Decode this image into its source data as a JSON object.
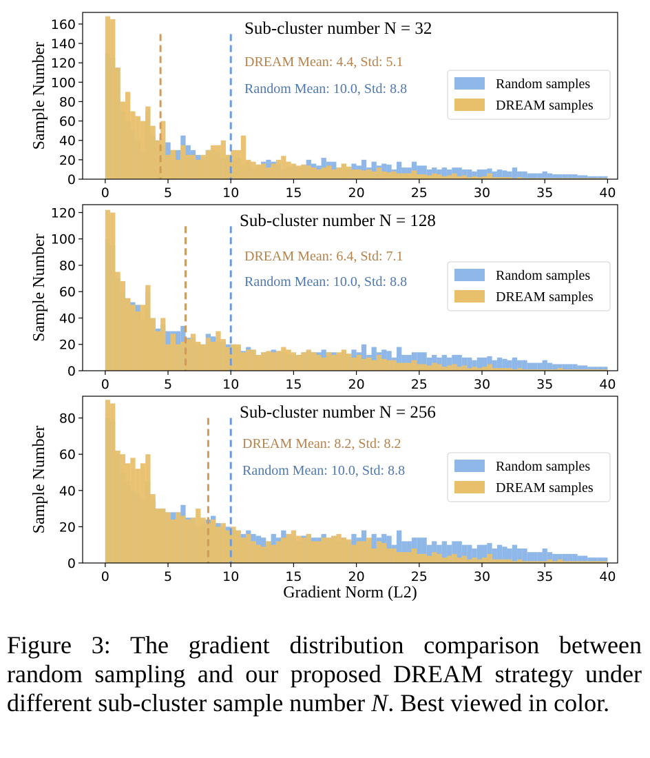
{
  "colors": {
    "random": "#8fb8e8",
    "dream": "#e8c06c",
    "random_line": "#6a9be0",
    "dream_line": "#cf9a5a",
    "random_text": "#4f78b3",
    "dream_text": "#b5824a"
  },
  "caption": {
    "label": "Figure 3:",
    "text_before": "The gradient distribution comparison between random sampling and our proposed DREAM strategy under different sub-cluster sample number",
    "var": "N",
    "text_after": ". Best viewed in color."
  },
  "chart_data": [
    {
      "type": "bar",
      "title": "Sub-cluster number N = 32",
      "xlabel": "",
      "ylabel": "Sample Number",
      "xlim": [
        -1.8,
        40.8
      ],
      "ylim": [
        0,
        172
      ],
      "xticks": [
        0,
        5,
        10,
        15,
        20,
        25,
        30,
        35,
        40
      ],
      "yticks": [
        0,
        20,
        40,
        60,
        80,
        100,
        120,
        140,
        160
      ],
      "bin_width": 0.4,
      "legend": {
        "position": "center-right",
        "entries": [
          "Random samples",
          "DREAM samples"
        ]
      },
      "annotations": {
        "dream": "DREAM Mean: 4.4, Std: 5.1",
        "random": "Random Mean: 10.0, Std: 8.8"
      },
      "dream_mean_line": 4.4,
      "random_mean_line": 10.0,
      "series": [
        {
          "name": "Random samples",
          "values": [
            130,
            125,
            115,
            70,
            60,
            50,
            40,
            28,
            70,
            45,
            40,
            35,
            38,
            30,
            30,
            45,
            35,
            30,
            25,
            22,
            30,
            30,
            28,
            22,
            25,
            20,
            22,
            15,
            18,
            12,
            15,
            18,
            20,
            18,
            16,
            10,
            12,
            14,
            12,
            15,
            20,
            16,
            14,
            22,
            18,
            18,
            12,
            16,
            10,
            16,
            14,
            20,
            12,
            18,
            14,
            16,
            15,
            10,
            18,
            12,
            12,
            18,
            14,
            14,
            10,
            12,
            10,
            12,
            10,
            12,
            12,
            10,
            10,
            8,
            10,
            10,
            11,
            8,
            10,
            9,
            8,
            12,
            8,
            8,
            6,
            6,
            6,
            8,
            6,
            5,
            5,
            5,
            5,
            5,
            4,
            4,
            3,
            3,
            3,
            3
          ]
        },
        {
          "name": "DREAM samples",
          "values": [
            168,
            165,
            115,
            80,
            90,
            70,
            65,
            60,
            75,
            55,
            40,
            60,
            25,
            30,
            20,
            35,
            25,
            25,
            20,
            25,
            30,
            35,
            35,
            40,
            25,
            30,
            30,
            45,
            20,
            18,
            15,
            16,
            12,
            16,
            20,
            24,
            18,
            16,
            14,
            15,
            14,
            12,
            10,
            12,
            14,
            10,
            12,
            16,
            13,
            10,
            10,
            9,
            10,
            8,
            12,
            8,
            7,
            8,
            6,
            6,
            6,
            9,
            5,
            5,
            4,
            6,
            5,
            3,
            4,
            6,
            3,
            4,
            2,
            3,
            2,
            3,
            6,
            2,
            2,
            2,
            2,
            1,
            2,
            1,
            1,
            1,
            1,
            1,
            1,
            1,
            1,
            1,
            1,
            1,
            1,
            1,
            1,
            1,
            1,
            1
          ]
        }
      ]
    },
    {
      "type": "bar",
      "title": "Sub-cluster number N = 128",
      "xlabel": "",
      "ylabel": "Sample Number",
      "xlim": [
        -1.8,
        40.8
      ],
      "ylim": [
        0,
        126
      ],
      "xticks": [
        0,
        5,
        10,
        15,
        20,
        25,
        30,
        35,
        40
      ],
      "yticks": [
        0,
        20,
        40,
        60,
        80,
        100,
        120
      ],
      "bin_width": 0.4,
      "legend": {
        "position": "center-right",
        "entries": [
          "Random samples",
          "DREAM samples"
        ]
      },
      "annotations": {
        "dream": "DREAM Mean: 6.4, Std: 7.1",
        "random": "Random Mean: 10.0, Std: 8.8"
      },
      "dream_mean_line": 6.4,
      "random_mean_line": 10.0,
      "series": [
        {
          "name": "Random samples",
          "values": [
            100,
            95,
            70,
            60,
            55,
            52,
            50,
            38,
            60,
            40,
            32,
            35,
            30,
            30,
            30,
            34,
            25,
            25,
            20,
            20,
            28,
            26,
            22,
            22,
            20,
            20,
            18,
            15,
            18,
            16,
            12,
            14,
            14,
            16,
            15,
            14,
            12,
            12,
            12,
            14,
            15,
            14,
            14,
            16,
            14,
            14,
            12,
            14,
            12,
            16,
            14,
            20,
            12,
            18,
            14,
            16,
            15,
            10,
            18,
            12,
            12,
            14,
            14,
            14,
            10,
            12,
            10,
            12,
            10,
            12,
            12,
            10,
            10,
            8,
            10,
            10,
            11,
            8,
            10,
            9,
            8,
            10,
            8,
            8,
            6,
            6,
            6,
            8,
            6,
            5,
            5,
            5,
            5,
            5,
            4,
            4,
            3,
            3,
            3,
            3
          ]
        },
        {
          "name": "DREAM samples",
          "values": [
            122,
            120,
            75,
            68,
            55,
            50,
            45,
            50,
            65,
            40,
            30,
            40,
            20,
            28,
            20,
            22,
            24,
            28,
            22,
            20,
            25,
            22,
            30,
            24,
            18,
            20,
            20,
            14,
            16,
            16,
            12,
            14,
            15,
            14,
            15,
            18,
            16,
            14,
            12,
            14,
            16,
            14,
            12,
            10,
            14,
            12,
            14,
            16,
            13,
            10,
            12,
            9,
            10,
            8,
            12,
            9,
            8,
            8,
            6,
            6,
            6,
            8,
            5,
            5,
            4,
            6,
            5,
            3,
            4,
            5,
            3,
            4,
            2,
            3,
            2,
            3,
            5,
            2,
            2,
            2,
            2,
            1,
            2,
            1,
            1,
            1,
            1,
            1,
            1,
            1,
            2,
            1,
            1,
            1,
            1,
            1,
            1,
            1,
            1,
            1
          ]
        }
      ]
    },
    {
      "type": "bar",
      "title": "Sub-cluster number N = 256",
      "xlabel": "Gradient Norm (L2)",
      "ylabel": "Sample Number",
      "xlim": [
        -1.8,
        40.8
      ],
      "ylim": [
        0,
        92
      ],
      "xticks": [
        0,
        5,
        10,
        15,
        20,
        25,
        30,
        35,
        40
      ],
      "yticks": [
        0,
        20,
        40,
        60,
        80
      ],
      "bin_width": 0.4,
      "legend": {
        "position": "center-right",
        "entries": [
          "Random samples",
          "DREAM samples"
        ]
      },
      "annotations": {
        "dream": "DREAM Mean: 8.2, Std: 8.2",
        "random": "Random Mean: 10.0, Std: 8.8"
      },
      "dream_mean_line": 8.2,
      "random_mean_line": 10.0,
      "series": [
        {
          "name": "Random samples",
          "values": [
            80,
            78,
            60,
            50,
            45,
            40,
            38,
            35,
            45,
            35,
            30,
            30,
            28,
            28,
            28,
            32,
            25,
            25,
            20,
            22,
            24,
            26,
            22,
            20,
            20,
            18,
            18,
            16,
            18,
            16,
            15,
            14,
            12,
            16,
            14,
            18,
            16,
            14,
            12,
            15,
            16,
            14,
            14,
            16,
            14,
            15,
            12,
            14,
            12,
            16,
            14,
            18,
            12,
            16,
            14,
            16,
            15,
            10,
            18,
            12,
            12,
            14,
            14,
            14,
            10,
            12,
            10,
            12,
            10,
            12,
            12,
            10,
            10,
            8,
            10,
            10,
            11,
            8,
            10,
            9,
            8,
            10,
            8,
            8,
            6,
            6,
            6,
            8,
            6,
            5,
            5,
            5,
            5,
            5,
            4,
            4,
            3,
            3,
            3,
            3
          ]
        },
        {
          "name": "DREAM samples",
          "values": [
            90,
            88,
            62,
            60,
            55,
            58,
            52,
            55,
            60,
            38,
            30,
            30,
            28,
            24,
            28,
            26,
            24,
            25,
            30,
            25,
            22,
            24,
            20,
            22,
            18,
            20,
            18,
            14,
            16,
            12,
            10,
            9,
            12,
            10,
            12,
            14,
            16,
            18,
            15,
            14,
            16,
            12,
            12,
            14,
            14,
            15,
            16,
            14,
            13,
            10,
            12,
            12,
            14,
            8,
            12,
            11,
            8,
            8,
            6,
            6,
            6,
            8,
            5,
            5,
            4,
            6,
            5,
            3,
            4,
            5,
            3,
            4,
            2,
            3,
            2,
            3,
            5,
            2,
            2,
            2,
            2,
            1,
            2,
            1,
            1,
            1,
            1,
            1,
            2,
            1,
            2,
            1,
            1,
            1,
            1,
            1,
            1,
            1,
            1,
            1
          ]
        }
      ]
    }
  ]
}
